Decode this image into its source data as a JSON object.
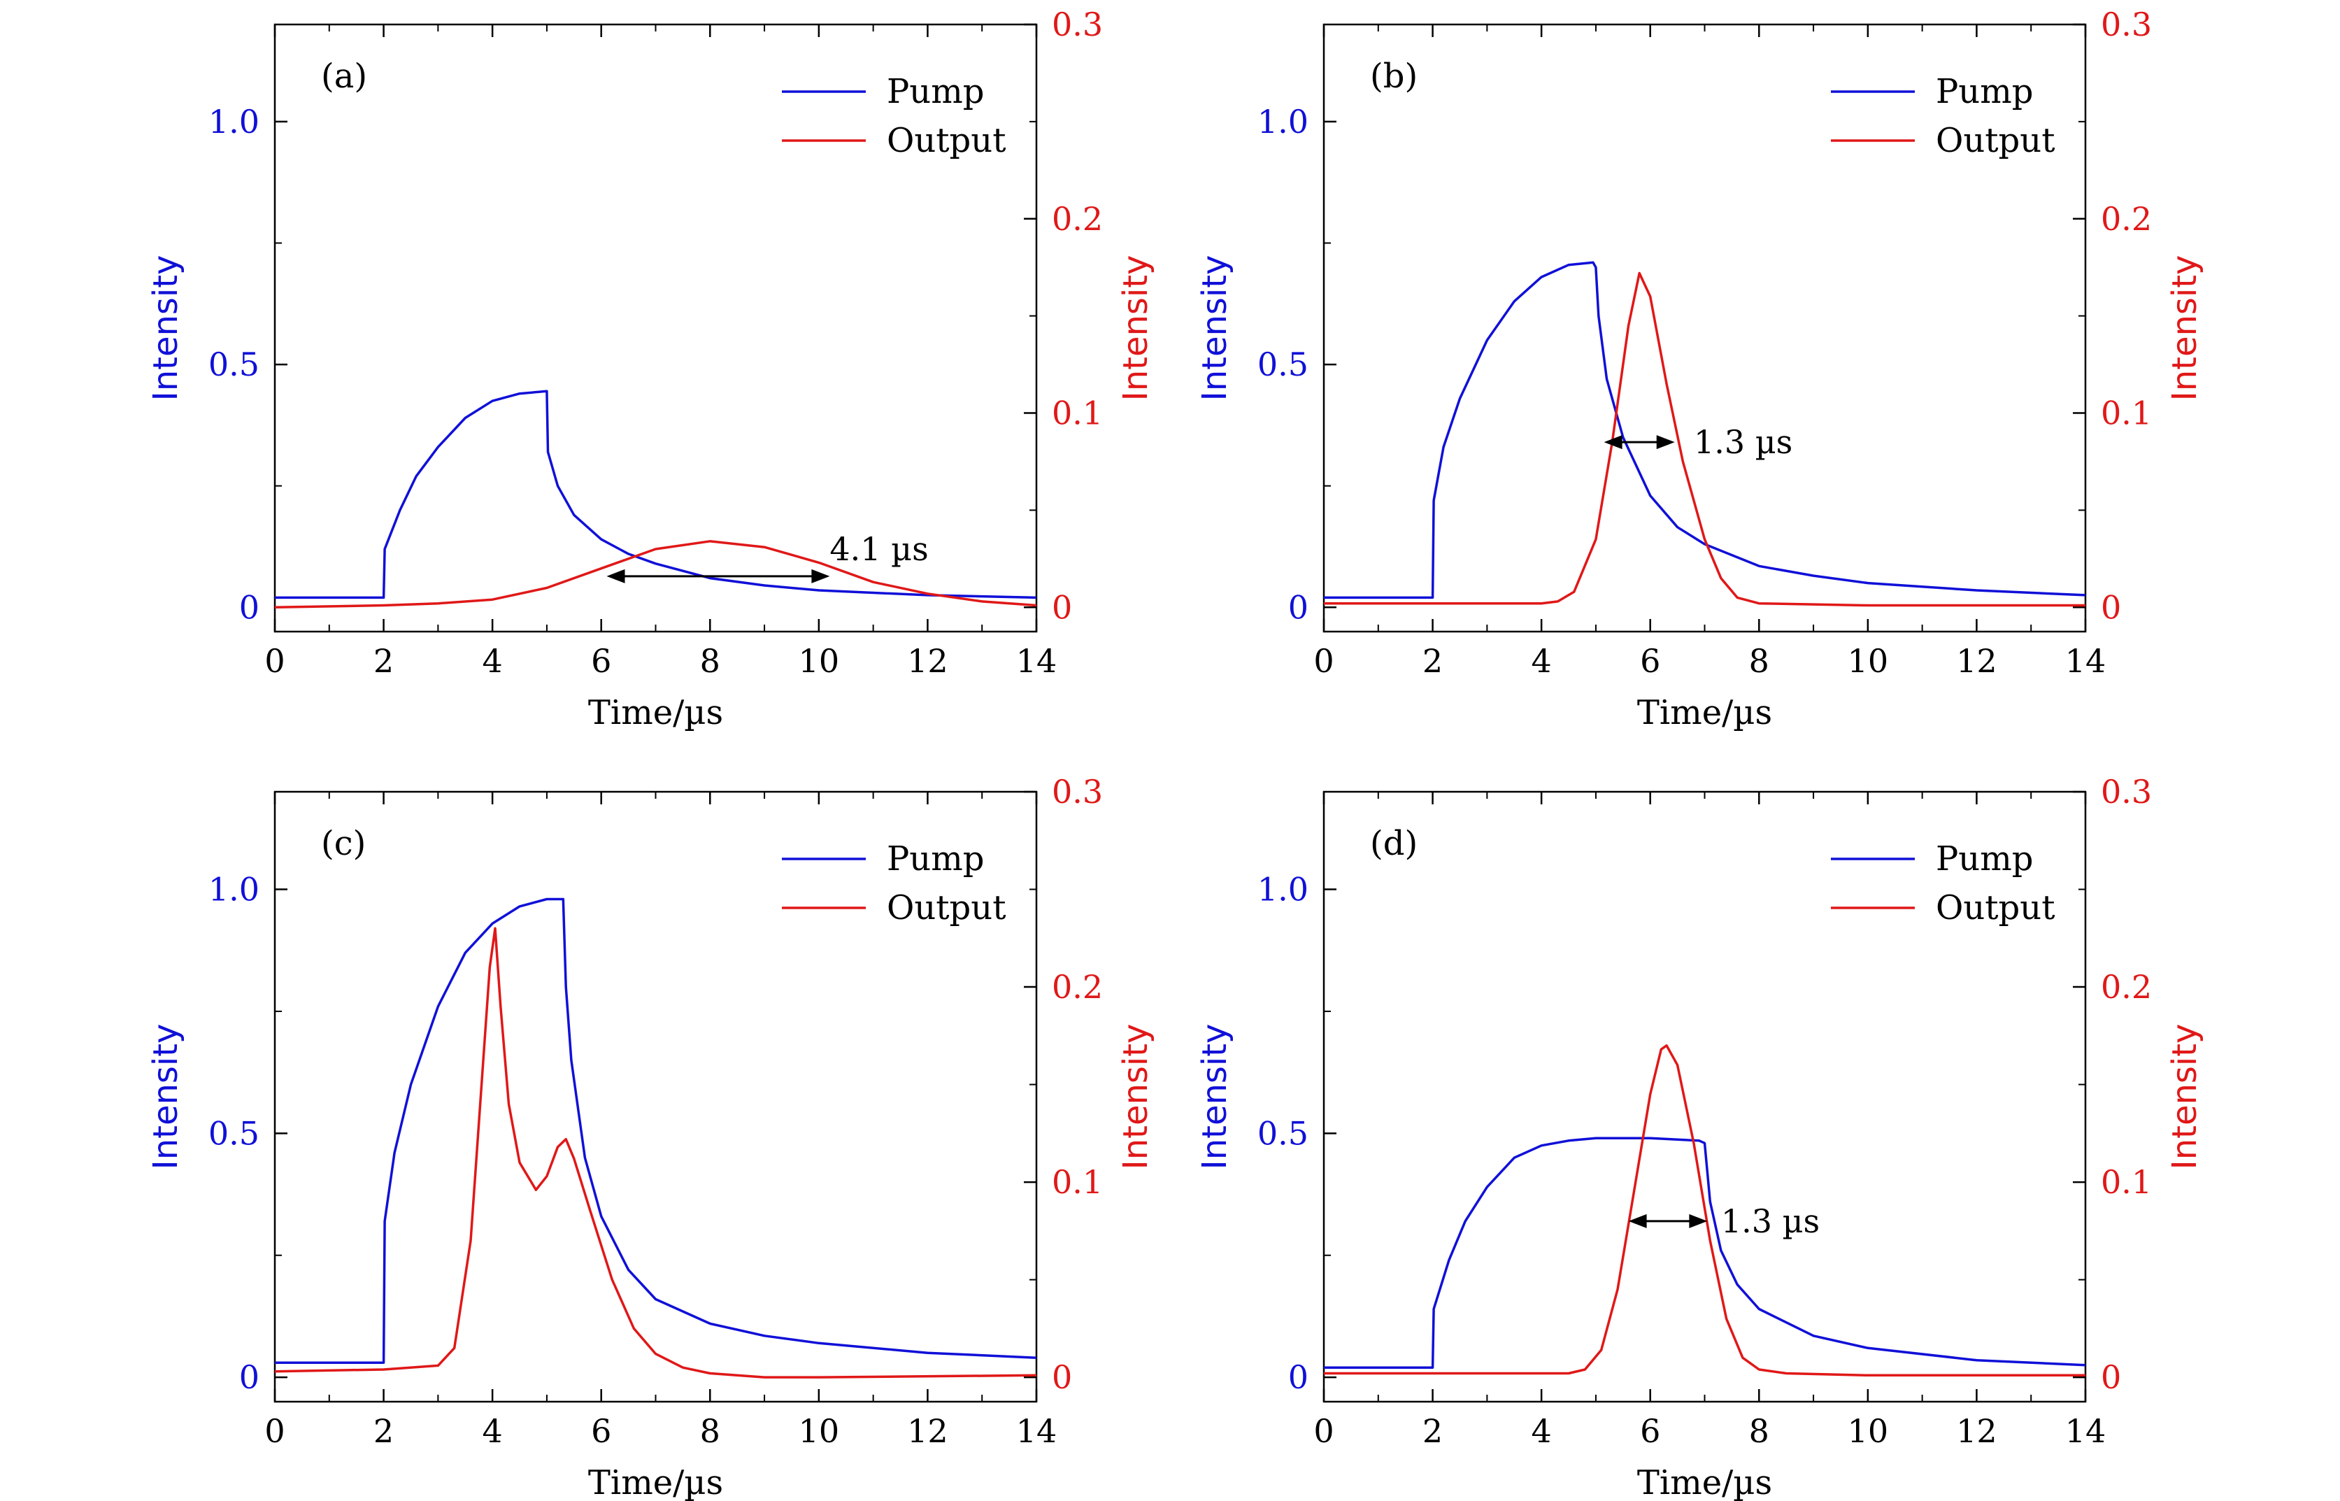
{
  "colors": {
    "pump": "#1010d8",
    "output": "#e01818",
    "axis": "#000000"
  },
  "chart_data": [
    {
      "type": "line",
      "panel_label": "(a)",
      "xlabel": "Time/µs",
      "ylabel_left": "Intensity",
      "ylabel_right": "Intensity",
      "xlim": [
        0,
        14
      ],
      "ylim_left": [
        -0.05,
        1.2
      ],
      "ylim_right": [
        -0.0125,
        0.3
      ],
      "xticks": [
        0,
        2,
        4,
        6,
        8,
        10,
        12,
        14
      ],
      "yticks_left": [
        0,
        0.5,
        1.0
      ],
      "yticks_left_labels": [
        "0",
        "0.5",
        "1.0"
      ],
      "yticks_right": [
        0,
        0.1,
        0.2,
        0.3
      ],
      "yticks_right_labels": [
        "0",
        "0.1",
        "0.2",
        "0.3"
      ],
      "legend": [
        "Pump",
        "Output"
      ],
      "legend_position": "top-right",
      "series": [
        {
          "name": "Pump",
          "axis": "left",
          "x": [
            0,
            2.0,
            2.02,
            2.3,
            2.6,
            3.0,
            3.5,
            4.0,
            4.5,
            5.0,
            5.02,
            5.2,
            5.5,
            6.0,
            6.5,
            7.0,
            8.0,
            9.0,
            10.0,
            12.0,
            14.0
          ],
          "y": [
            0.02,
            0.02,
            0.12,
            0.2,
            0.27,
            0.33,
            0.39,
            0.425,
            0.44,
            0.445,
            0.32,
            0.25,
            0.19,
            0.14,
            0.11,
            0.09,
            0.06,
            0.045,
            0.035,
            0.025,
            0.02
          ]
        },
        {
          "name": "Output",
          "axis": "right",
          "x": [
            0,
            2,
            3,
            4,
            5,
            6,
            7,
            8,
            9,
            10,
            11,
            12,
            13,
            14
          ],
          "y": [
            0.0,
            0.001,
            0.002,
            0.004,
            0.01,
            0.02,
            0.03,
            0.034,
            0.031,
            0.023,
            0.013,
            0.007,
            0.003,
            0.001
          ]
        }
      ],
      "annotation": {
        "text": "4.1 µs",
        "x1": 6.1,
        "x2": 10.2,
        "y_right": 0.016,
        "text_x": 10.2,
        "text_y_right": 0.03
      }
    },
    {
      "type": "line",
      "panel_label": "(b)",
      "xlabel": "Time/µs",
      "ylabel_left": "Intensity",
      "ylabel_right": "Intensity",
      "xlim": [
        0,
        14
      ],
      "ylim_left": [
        -0.05,
        1.2
      ],
      "ylim_right": [
        -0.0125,
        0.3
      ],
      "xticks": [
        0,
        2,
        4,
        6,
        8,
        10,
        12,
        14
      ],
      "yticks_left": [
        0,
        0.5,
        1.0
      ],
      "yticks_left_labels": [
        "0",
        "0.5",
        "1.0"
      ],
      "yticks_right": [
        0,
        0.1,
        0.2,
        0.3
      ],
      "yticks_right_labels": [
        "0",
        "0.1",
        "0.2",
        "0.3"
      ],
      "legend": [
        "Pump",
        "Output"
      ],
      "legend_position": "top-right",
      "series": [
        {
          "name": "Pump",
          "axis": "left",
          "x": [
            0,
            2.0,
            2.02,
            2.2,
            2.5,
            3.0,
            3.5,
            4.0,
            4.5,
            4.95,
            5.0,
            5.05,
            5.2,
            5.5,
            6.0,
            6.5,
            7.0,
            8.0,
            9.0,
            10.0,
            12.0,
            14.0
          ],
          "y": [
            0.02,
            0.02,
            0.22,
            0.33,
            0.43,
            0.55,
            0.63,
            0.68,
            0.705,
            0.71,
            0.7,
            0.6,
            0.47,
            0.35,
            0.23,
            0.165,
            0.13,
            0.085,
            0.065,
            0.05,
            0.035,
            0.025
          ]
        },
        {
          "name": "Output",
          "axis": "right",
          "x": [
            0,
            4.0,
            4.3,
            4.6,
            5.0,
            5.3,
            5.6,
            5.8,
            6.0,
            6.3,
            6.6,
            7.0,
            7.3,
            7.6,
            8.0,
            10.0,
            14.0
          ],
          "y": [
            0.002,
            0.002,
            0.003,
            0.008,
            0.035,
            0.085,
            0.145,
            0.172,
            0.16,
            0.115,
            0.075,
            0.035,
            0.015,
            0.005,
            0.002,
            0.001,
            0.001
          ]
        }
      ],
      "annotation": {
        "text": "1.3 µs",
        "x1": 5.15,
        "x2": 6.45,
        "y_right": 0.085,
        "text_x": 6.8,
        "text_y_right": 0.085
      }
    },
    {
      "type": "line",
      "panel_label": "(c)",
      "xlabel": "Time/µs",
      "ylabel_left": "Intensity",
      "ylabel_right": "Intensity",
      "xlim": [
        0,
        14
      ],
      "ylim_left": [
        -0.05,
        1.2
      ],
      "ylim_right": [
        -0.0125,
        0.3
      ],
      "xticks": [
        0,
        2,
        4,
        6,
        8,
        10,
        12,
        14
      ],
      "yticks_left": [
        0,
        0.5,
        1.0
      ],
      "yticks_left_labels": [
        "0",
        "0.5",
        "1.0"
      ],
      "yticks_right": [
        0,
        0.1,
        0.2,
        0.3
      ],
      "yticks_right_labels": [
        "0",
        "0.1",
        "0.2",
        "0.3"
      ],
      "legend": [
        "Pump",
        "Output"
      ],
      "legend_position": "top-right",
      "series": [
        {
          "name": "Pump",
          "axis": "left",
          "x": [
            0,
            2.0,
            2.02,
            2.2,
            2.5,
            3.0,
            3.5,
            4.0,
            4.5,
            5.0,
            5.3,
            5.35,
            5.45,
            5.7,
            6.0,
            6.5,
            7.0,
            8.0,
            9.0,
            10.0,
            12.0,
            14.0
          ],
          "y": [
            0.03,
            0.03,
            0.32,
            0.46,
            0.6,
            0.76,
            0.87,
            0.93,
            0.965,
            0.98,
            0.98,
            0.8,
            0.65,
            0.45,
            0.33,
            0.22,
            0.16,
            0.11,
            0.085,
            0.07,
            0.05,
            0.04
          ]
        },
        {
          "name": "Output",
          "axis": "right",
          "x": [
            0,
            2.0,
            3.0,
            3.3,
            3.6,
            3.8,
            3.95,
            4.05,
            4.15,
            4.3,
            4.5,
            4.8,
            5.0,
            5.2,
            5.35,
            5.5,
            5.8,
            6.2,
            6.6,
            7.0,
            7.5,
            8.0,
            9.0,
            10.0,
            14.0
          ],
          "y": [
            0.003,
            0.004,
            0.006,
            0.015,
            0.07,
            0.15,
            0.21,
            0.23,
            0.19,
            0.14,
            0.11,
            0.096,
            0.103,
            0.118,
            0.122,
            0.112,
            0.085,
            0.05,
            0.025,
            0.012,
            0.005,
            0.002,
            0.0,
            0.0,
            0.001
          ]
        }
      ]
    },
    {
      "type": "line",
      "panel_label": "(d)",
      "xlabel": "Time/µs",
      "ylabel_left": "Intensity",
      "ylabel_right": "Intensity",
      "xlim": [
        0,
        14
      ],
      "ylim_left": [
        -0.05,
        1.2
      ],
      "ylim_right": [
        -0.0125,
        0.3
      ],
      "xticks": [
        0,
        2,
        4,
        6,
        8,
        10,
        12,
        14
      ],
      "yticks_left": [
        0,
        0.5,
        1.0
      ],
      "yticks_left_labels": [
        "0",
        "0.5",
        "1.0"
      ],
      "yticks_right": [
        0,
        0.1,
        0.2,
        0.3
      ],
      "yticks_right_labels": [
        "0",
        "0.1",
        "0.2",
        "0.3"
      ],
      "legend": [
        "Pump",
        "Output"
      ],
      "legend_position": "top-right",
      "series": [
        {
          "name": "Pump",
          "axis": "left",
          "x": [
            0,
            2.0,
            2.02,
            2.3,
            2.6,
            3.0,
            3.5,
            4.0,
            4.5,
            5.0,
            6.0,
            6.9,
            7.0,
            7.1,
            7.3,
            7.6,
            8.0,
            9.0,
            10.0,
            12.0,
            14.0
          ],
          "y": [
            0.02,
            0.02,
            0.14,
            0.24,
            0.32,
            0.39,
            0.45,
            0.475,
            0.485,
            0.49,
            0.49,
            0.485,
            0.48,
            0.36,
            0.26,
            0.19,
            0.14,
            0.085,
            0.06,
            0.035,
            0.025
          ]
        },
        {
          "name": "Output",
          "axis": "right",
          "x": [
            0,
            4.5,
            4.8,
            5.1,
            5.4,
            5.7,
            6.0,
            6.2,
            6.3,
            6.5,
            6.8,
            7.1,
            7.4,
            7.7,
            8.0,
            8.5,
            10.0,
            14.0
          ],
          "y": [
            0.002,
            0.002,
            0.004,
            0.014,
            0.045,
            0.095,
            0.145,
            0.168,
            0.17,
            0.16,
            0.12,
            0.07,
            0.03,
            0.01,
            0.004,
            0.002,
            0.001,
            0.001
          ]
        }
      ],
      "annotation": {
        "text": "1.3 µs",
        "x1": 5.6,
        "x2": 7.05,
        "y_right": 0.08,
        "text_x": 7.3,
        "text_y_right": 0.08
      }
    }
  ]
}
